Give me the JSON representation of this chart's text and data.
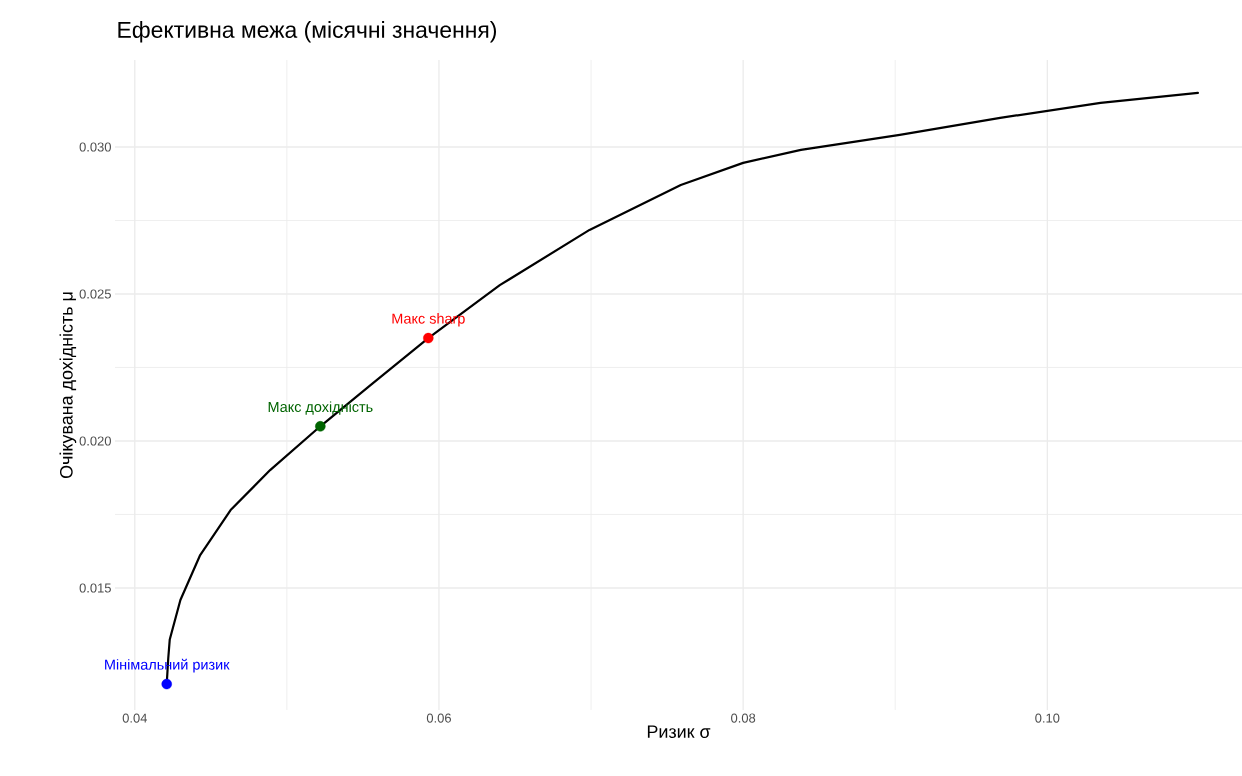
{
  "chart_data": {
    "type": "line",
    "title": "Ефективна межа (місячні значення)",
    "xlabel": "Ризик σ",
    "ylabel": "Очікувана дохідність μ",
    "series": [
      {
        "color": "#000000",
        "x": [
          0.0421,
          0.0422,
          0.0423,
          0.043,
          0.0443,
          0.0463,
          0.0489,
          0.0522,
          0.0555,
          0.0593,
          0.064,
          0.0699,
          0.0759,
          0.08,
          0.0838,
          0.0903,
          0.0969,
          0.1035,
          0.1099
        ],
        "values": [
          0.01173,
          0.0126,
          0.01325,
          0.01459,
          0.01612,
          0.01765,
          0.01901,
          0.0205,
          0.0219,
          0.0235,
          0.0253,
          0.02718,
          0.02871,
          0.02946,
          0.0299,
          0.03041,
          0.03099,
          0.0315,
          0.03184
        ]
      },
      {
        "type": "scatter",
        "x": [
          0.0421,
          0.0522,
          0.0593
        ],
        "values": [
          0.01173,
          0.0205,
          0.0235
        ],
        "colors": [
          "#0000ff",
          "#006400",
          "#ff0000"
        ]
      }
    ],
    "annotations": [
      {
        "text": "Мінімальний ризик",
        "x": 0.0421,
        "y": 0.01173
      },
      {
        "text": "Макс дохідність",
        "x": 0.0522,
        "y": 0.0205
      },
      {
        "text": "Макс sharp",
        "x": 0.0593,
        "y": 0.0235
      }
    ],
    "xlim": [
      0.0387,
      0.1128
    ],
    "ylim": [
      0.01085,
      0.03296
    ],
    "xticks": [
      {
        "value": 0.04,
        "label": "0.04"
      },
      {
        "value": 0.06,
        "label": "0.06"
      },
      {
        "value": 0.08,
        "label": "0.08"
      },
      {
        "value": 0.1,
        "label": "0.10"
      }
    ],
    "yticks": [
      {
        "value": 0.015,
        "label": "0.015"
      },
      {
        "value": 0.02,
        "label": "0.020"
      },
      {
        "value": 0.025,
        "label": "0.025"
      },
      {
        "value": 0.03,
        "label": "0.030"
      }
    ],
    "grid": true,
    "line_style": "solid"
  }
}
